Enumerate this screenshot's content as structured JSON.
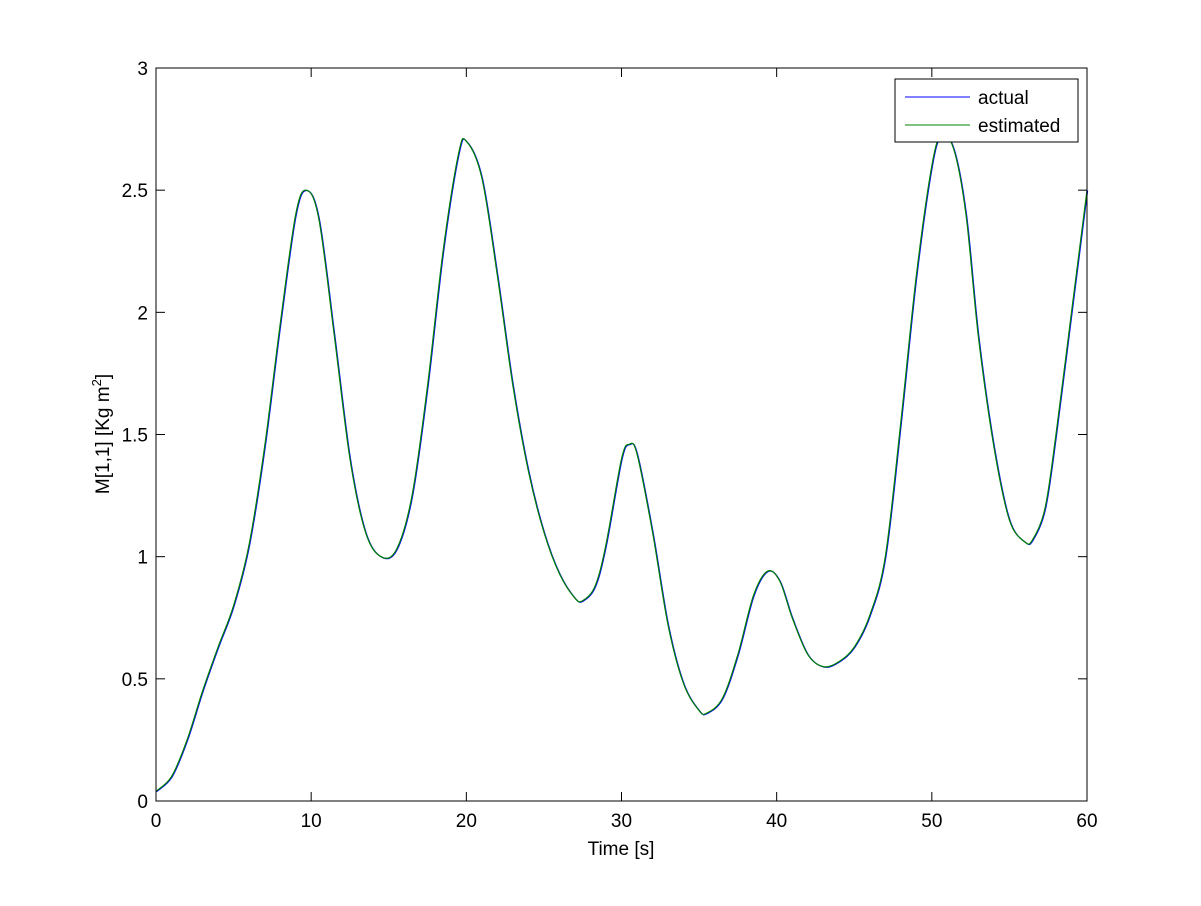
{
  "chart_data": {
    "type": "line",
    "title": "",
    "xlabel": "Time [s]",
    "ylabel_main": "M[1,1] [Kg m",
    "ylabel_sup": "2",
    "ylabel_close": "]",
    "xlim": [
      0,
      60
    ],
    "ylim": [
      0,
      3
    ],
    "xticks": [
      0,
      10,
      20,
      30,
      40,
      50,
      60
    ],
    "yticks": [
      0,
      0.5,
      1,
      1.5,
      2,
      2.5,
      3
    ],
    "xtick_labels": [
      "0",
      "10",
      "20",
      "30",
      "40",
      "50",
      "60"
    ],
    "ytick_labels": [
      "0",
      "0.5",
      "1",
      "1.5",
      "2",
      "2.5",
      "3"
    ],
    "grid": false,
    "legend_position": "top-right",
    "series": [
      {
        "name": "actual",
        "color": "#0000ff",
        "points": [
          [
            0,
            0.04
          ],
          [
            1,
            0.1
          ],
          [
            2,
            0.25
          ],
          [
            3,
            0.45
          ],
          [
            4,
            0.63
          ],
          [
            5,
            0.8
          ],
          [
            6,
            1.05
          ],
          [
            7,
            1.45
          ],
          [
            8,
            1.95
          ],
          [
            9,
            2.4
          ],
          [
            9.7,
            2.5
          ],
          [
            10.5,
            2.38
          ],
          [
            11.5,
            1.9
          ],
          [
            12.5,
            1.4
          ],
          [
            13.5,
            1.1
          ],
          [
            14.5,
            1.0
          ],
          [
            15.5,
            1.03
          ],
          [
            16.5,
            1.25
          ],
          [
            17.5,
            1.7
          ],
          [
            18.5,
            2.25
          ],
          [
            19.5,
            2.65
          ],
          [
            20,
            2.7
          ],
          [
            21,
            2.55
          ],
          [
            22,
            2.15
          ],
          [
            23,
            1.7
          ],
          [
            24,
            1.35
          ],
          [
            25,
            1.1
          ],
          [
            26,
            0.93
          ],
          [
            27,
            0.83
          ],
          [
            27.5,
            0.82
          ],
          [
            28.3,
            0.88
          ],
          [
            29,
            1.05
          ],
          [
            30,
            1.4
          ],
          [
            30.5,
            1.46
          ],
          [
            31,
            1.42
          ],
          [
            32,
            1.1
          ],
          [
            33,
            0.72
          ],
          [
            34,
            0.48
          ],
          [
            35,
            0.37
          ],
          [
            35.5,
            0.36
          ],
          [
            36.5,
            0.42
          ],
          [
            37.5,
            0.6
          ],
          [
            38.5,
            0.84
          ],
          [
            39.4,
            0.94
          ],
          [
            40.2,
            0.9
          ],
          [
            41,
            0.75
          ],
          [
            42,
            0.6
          ],
          [
            43,
            0.55
          ],
          [
            44,
            0.57
          ],
          [
            45,
            0.63
          ],
          [
            46,
            0.76
          ],
          [
            47,
            1.0
          ],
          [
            48,
            1.55
          ],
          [
            49,
            2.15
          ],
          [
            50,
            2.6
          ],
          [
            50.6,
            2.72
          ],
          [
            51.4,
            2.67
          ],
          [
            52.2,
            2.4
          ],
          [
            53,
            1.9
          ],
          [
            54,
            1.45
          ],
          [
            55,
            1.15
          ],
          [
            56,
            1.06
          ],
          [
            56.5,
            1.07
          ],
          [
            57.3,
            1.2
          ],
          [
            58,
            1.5
          ],
          [
            59,
            2.0
          ],
          [
            60,
            2.5
          ]
        ]
      },
      {
        "name": "estimated",
        "color": "#008000",
        "points": [
          [
            0,
            0.04
          ],
          [
            1,
            0.1
          ],
          [
            2,
            0.25
          ],
          [
            3,
            0.45
          ],
          [
            4,
            0.63
          ],
          [
            5,
            0.8
          ],
          [
            6,
            1.05
          ],
          [
            7,
            1.45
          ],
          [
            8,
            1.95
          ],
          [
            9,
            2.4
          ],
          [
            9.7,
            2.5
          ],
          [
            10.5,
            2.38
          ],
          [
            11.5,
            1.9
          ],
          [
            12.5,
            1.4
          ],
          [
            13.5,
            1.1
          ],
          [
            14.5,
            1.0
          ],
          [
            15.5,
            1.03
          ],
          [
            16.5,
            1.25
          ],
          [
            17.5,
            1.7
          ],
          [
            18.5,
            2.25
          ],
          [
            19.5,
            2.65
          ],
          [
            20,
            2.7
          ],
          [
            21,
            2.55
          ],
          [
            22,
            2.15
          ],
          [
            23,
            1.7
          ],
          [
            24,
            1.35
          ],
          [
            25,
            1.1
          ],
          [
            26,
            0.93
          ],
          [
            27,
            0.83
          ],
          [
            27.5,
            0.82
          ],
          [
            28.3,
            0.88
          ],
          [
            29,
            1.05
          ],
          [
            30,
            1.4
          ],
          [
            30.5,
            1.46
          ],
          [
            31,
            1.42
          ],
          [
            32,
            1.1
          ],
          [
            33,
            0.72
          ],
          [
            34,
            0.48
          ],
          [
            35,
            0.37
          ],
          [
            35.5,
            0.36
          ],
          [
            36.5,
            0.42
          ],
          [
            37.5,
            0.6
          ],
          [
            38.5,
            0.84
          ],
          [
            39.4,
            0.94
          ],
          [
            40.2,
            0.9
          ],
          [
            41,
            0.75
          ],
          [
            42,
            0.6
          ],
          [
            43,
            0.55
          ],
          [
            44,
            0.57
          ],
          [
            45,
            0.63
          ],
          [
            46,
            0.76
          ],
          [
            47,
            1.0
          ],
          [
            48,
            1.55
          ],
          [
            49,
            2.15
          ],
          [
            50,
            2.6
          ],
          [
            50.6,
            2.72
          ],
          [
            51.4,
            2.67
          ],
          [
            52.2,
            2.4
          ],
          [
            53,
            1.9
          ],
          [
            54,
            1.45
          ],
          [
            55,
            1.15
          ],
          [
            56,
            1.06
          ],
          [
            56.5,
            1.07
          ],
          [
            57.3,
            1.2
          ],
          [
            58,
            1.5
          ],
          [
            59,
            2.0
          ],
          [
            60,
            2.5
          ]
        ]
      }
    ]
  }
}
